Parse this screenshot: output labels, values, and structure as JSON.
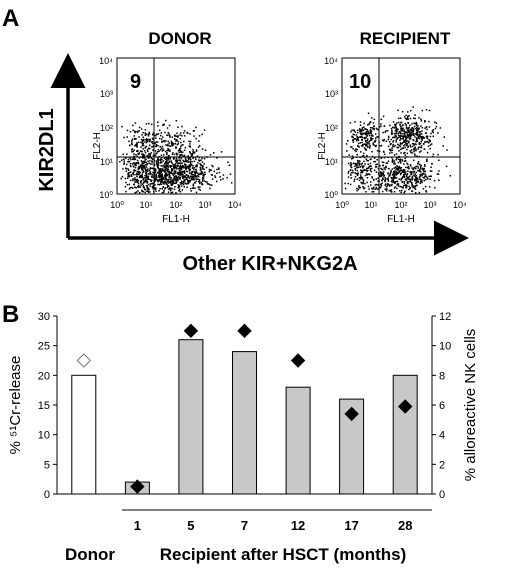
{
  "panel_a": {
    "letter": "A",
    "y_axis_label": "KIR2DL1",
    "x_axis_label": "Other KIR+NKG2A",
    "plots": [
      {
        "title": "DONOR",
        "quadrant_value": "9",
        "x_channel": "FL1-H",
        "y_channel": "FL2-H",
        "x_ticks": [
          "10⁰",
          "10¹",
          "10²",
          "10³",
          "10⁴"
        ],
        "y_ticks": [
          "10⁰",
          "10¹",
          "10²",
          "10³",
          "10⁴"
        ]
      },
      {
        "title": "RECIPIENT",
        "quadrant_value": "10",
        "x_channel": "FL1-H",
        "y_channel": "FL2-H",
        "x_ticks": [
          "10⁰",
          "10¹",
          "10²",
          "10³",
          "10⁴"
        ],
        "y_ticks": [
          "10⁰",
          "10¹",
          "10²",
          "10³",
          "10⁴"
        ]
      }
    ]
  },
  "panel_b": {
    "letter": "B",
    "donor_label": "Donor",
    "recipient_caption": "Recipient after HSCT (months)",
    "chart_data": {
      "type": "bar",
      "categories": [
        "",
        "1",
        "5",
        "7",
        "12",
        "17",
        "28"
      ],
      "left_axis": {
        "label": "% ⁵¹Cr-release",
        "range": [
          0,
          30
        ],
        "ticks": [
          "0",
          "5",
          "10",
          "15",
          "20",
          "25",
          "30"
        ]
      },
      "right_axis": {
        "label": "% alloreactive NK cells",
        "range": [
          0,
          12
        ],
        "ticks": [
          "0",
          "2",
          "4",
          "6",
          "8",
          "10",
          "12"
        ]
      },
      "bar_values": [
        20,
        2,
        26,
        24,
        18,
        16,
        20
      ],
      "marker_values": [
        9,
        0.5,
        11,
        11,
        9,
        5.4,
        5.9
      ],
      "bar_colors": [
        "#ffffff",
        "#c8c8c8",
        "#c8c8c8",
        "#c8c8c8",
        "#c8c8c8",
        "#c8c8c8",
        "#c8c8c8"
      ],
      "marker_styles": [
        "open",
        "filled",
        "filled",
        "filled",
        "filled",
        "filled",
        "filled"
      ]
    }
  }
}
